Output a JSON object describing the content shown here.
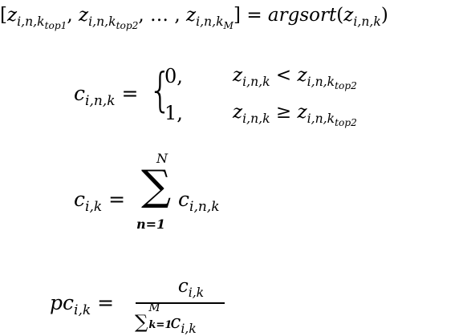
{
  "eq1": {
    "open": "[",
    "z1": "z",
    "sub1a": "i,n,k",
    "sub1b": "top1",
    "sep1": ", ",
    "z2": "z",
    "sub2a": "i,n,k",
    "sub2b": "top2",
    "sep2": ", … , ",
    "z3": "z",
    "sub3a": "i,n,k",
    "sub3b": "M",
    "close": "]",
    "eq": " = ",
    "func": "argsort",
    "paren_open": "(",
    "arg": "z",
    "arg_sub": "i,n,k",
    "paren_close": ")"
  },
  "eq2": {
    "lhs": "c",
    "lhs_sub": "i,n,k",
    "eq": " = ",
    "brace": "{",
    "case1_value": "0,",
    "case1_lhs": "z",
    "case1_lhs_sub": "i,n,k",
    "case1_op": " < ",
    "case1_rhs": "z",
    "case1_rhs_sub_a": "i,n,k",
    "case1_rhs_sub_b": "top2",
    "case2_value": "1,",
    "case2_lhs": "z",
    "case2_lhs_sub": "i,n,k",
    "case2_op": " ≥ ",
    "case2_rhs": "z",
    "case2_rhs_sub_a": "i,n,k",
    "case2_rhs_sub_b": "top2"
  },
  "eq3": {
    "lhs": "c",
    "lhs_sub": "i,k",
    "eq": " = ",
    "sigma": "∑",
    "upper": "N",
    "lower": "n=1",
    "term": "c",
    "term_sub": "i,n,k"
  },
  "eq4": {
    "lhs": "pc",
    "lhs_sub": "i,k",
    "eq": " = ",
    "num": "c",
    "num_sub": "i,k",
    "den_sigma": "∑",
    "den_sub": "k=1",
    "den_sup": "M",
    "den_term": "c",
    "den_term_sub": "i,k"
  }
}
